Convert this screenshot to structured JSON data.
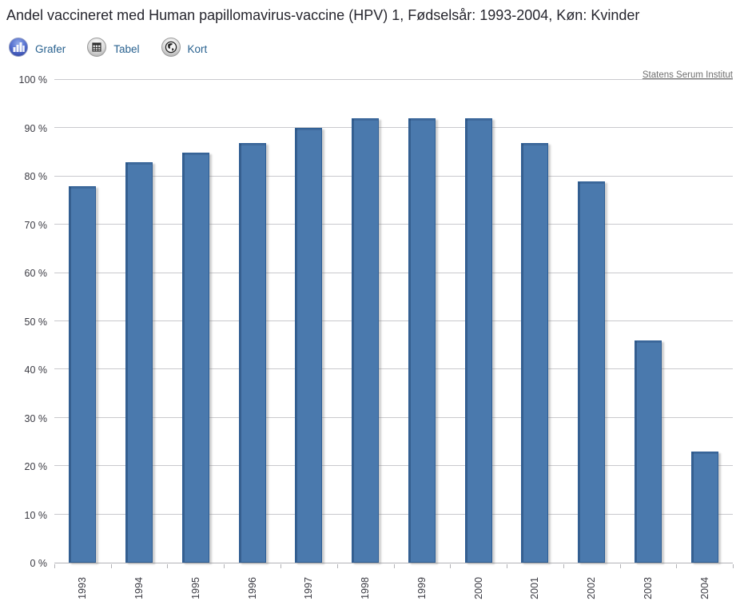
{
  "header": {
    "title": "Andel vaccineret med Human papillomavirus-vaccine (HPV) 1, Fødselsår: 1993-2004, Køn: Kvinder"
  },
  "tabs": [
    {
      "id": "grafer",
      "label": "Grafer",
      "icon": "bar-chart-icon",
      "active": true
    },
    {
      "id": "tabel",
      "label": "Tabel",
      "icon": "table-icon",
      "active": false
    },
    {
      "id": "kort",
      "label": "Kort",
      "icon": "globe-icon",
      "active": false
    }
  ],
  "source_link": {
    "label": "Statens Serum Institut"
  },
  "colors": {
    "bar_fill": "#4a79ad",
    "bar_border": "#2d5d94",
    "gridline": "#c9c9cd",
    "axis_line": "#b2b2b6",
    "axis_label_text": "#3a3a42",
    "title_text": "#26262e",
    "tab_label_text": "#28618f",
    "link_text": "#707070",
    "active_tab_icon": "#4a63c8"
  },
  "chart_data": {
    "type": "bar",
    "title": "Andel vaccineret med Human papillomavirus-vaccine (HPV) 1, Fødselsår: 1993-2004, Køn: Kvinder",
    "categories": [
      "1993",
      "1994",
      "1995",
      "1996",
      "1997",
      "1998",
      "1999",
      "2000",
      "2001",
      "2002",
      "2003",
      "2004"
    ],
    "values": [
      78,
      83,
      85,
      87,
      90,
      92,
      92,
      92,
      87,
      79,
      46,
      23
    ],
    "xlabel": "",
    "ylabel": "",
    "ylim": [
      0,
      100
    ],
    "y_tick_step": 10,
    "y_tick_labels": [
      "0 %",
      "10 %",
      "20 %",
      "30 %",
      "40 %",
      "50 %",
      "60 %",
      "70 %",
      "80 %",
      "90 %",
      "100 %"
    ],
    "grid": true,
    "legend_position": "none",
    "x_labels_rotated_degrees": -90
  }
}
